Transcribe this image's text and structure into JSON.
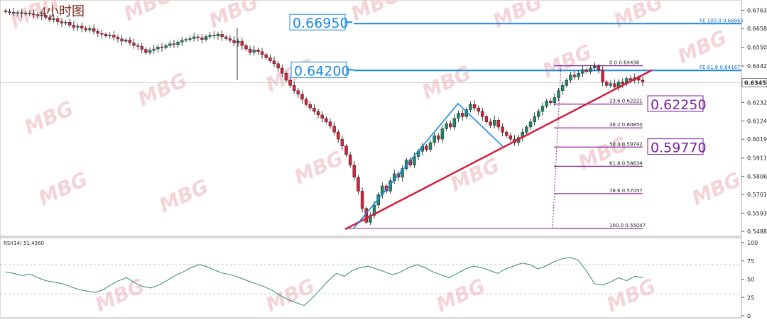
{
  "chart_data": {
    "type": "candlestick",
    "title": "4小时图",
    "watermark": "MBG",
    "price_axis": {
      "ylim": [
        0.548,
        0.679
      ],
      "ticks": [
        "0.67630",
        "0.66585",
        "0.65500",
        "0.64420",
        "0.63320",
        "0.62320",
        "0.61240",
        "0.60195",
        "0.59110",
        "0.58060",
        "0.57010",
        "0.55930",
        "0.54880"
      ]
    },
    "current_price": "0.63455",
    "annotations": {
      "big_labels": [
        {
          "text": "0.66950",
          "price": 0.6695,
          "color": "#1e88e5"
        },
        {
          "text": "0.64200",
          "price": 0.642,
          "color": "#1e88e5"
        },
        {
          "text": "0.62250",
          "price": 0.6225,
          "color": "#7b1fa2"
        },
        {
          "text": "0.59770",
          "price": 0.5977,
          "color": "#7b1fa2"
        }
      ],
      "fib_extension": [
        {
          "label": "FE 100.0",
          "value": "0.66865",
          "price": 0.66865
        },
        {
          "label": "FE 61.8",
          "value": "0.64167",
          "price": 0.64167
        }
      ],
      "fib_retracement": [
        {
          "label": "0.0",
          "value": "0.64436",
          "price": 0.64436
        },
        {
          "label": "23.6",
          "value": "0.62221",
          "price": 0.62221
        },
        {
          "label": "38.2",
          "value": "0.60850",
          "price": 0.6085
        },
        {
          "label": "50.0",
          "value": "0.59742",
          "price": 0.59742
        },
        {
          "label": "61.8",
          "value": "0.58634",
          "price": 0.58634
        },
        {
          "label": "78.6",
          "value": "0.57057",
          "price": 0.57057
        },
        {
          "label": "100.0",
          "value": "0.55047",
          "price": 0.55047
        }
      ]
    },
    "candles_close": [
      0.6755,
      0.6752,
      0.6748,
      0.675,
      0.6745,
      0.6747,
      0.6742,
      0.6738,
      0.6732,
      0.6735,
      0.6722,
      0.671,
      0.6715,
      0.6698,
      0.669,
      0.6695,
      0.6678,
      0.6665,
      0.6672,
      0.666,
      0.665,
      0.6658,
      0.6642,
      0.663,
      0.6625,
      0.6615,
      0.662,
      0.6608,
      0.6598,
      0.6585,
      0.6592,
      0.6575,
      0.656,
      0.6555,
      0.6538,
      0.652,
      0.6532,
      0.654,
      0.6552,
      0.6548,
      0.656,
      0.657,
      0.6565,
      0.658,
      0.659,
      0.6595,
      0.66,
      0.661,
      0.6605,
      0.6595,
      0.6612,
      0.662,
      0.6615,
      0.6625,
      0.661,
      0.66,
      0.659,
      0.6575,
      0.6585,
      0.656,
      0.654,
      0.652,
      0.6535,
      0.6525,
      0.6508,
      0.649,
      0.6472,
      0.6455,
      0.643,
      0.64,
      0.636,
      0.633,
      0.63,
      0.628,
      0.625,
      0.622,
      0.62,
      0.618,
      0.616,
      0.614,
      0.612,
      0.6095,
      0.606,
      0.602,
      0.598,
      0.593,
      0.587,
      0.58,
      0.572,
      0.562,
      0.554,
      0.558,
      0.564,
      0.57,
      0.575,
      0.572,
      0.578,
      0.582,
      0.58,
      0.585,
      0.59,
      0.587,
      0.592,
      0.595,
      0.598,
      0.596,
      0.6,
      0.604,
      0.602,
      0.608,
      0.611,
      0.609,
      0.614,
      0.617,
      0.615,
      0.619,
      0.622,
      0.62,
      0.618,
      0.615,
      0.612,
      0.61,
      0.613,
      0.609,
      0.606,
      0.604,
      0.602,
      0.6,
      0.603,
      0.606,
      0.609,
      0.612,
      0.615,
      0.618,
      0.621,
      0.624,
      0.623,
      0.626,
      0.63,
      0.633,
      0.636,
      0.639,
      0.638,
      0.64,
      0.642,
      0.641,
      0.643,
      0.644,
      0.642,
      0.635,
      0.633,
      0.634,
      0.632,
      0.635,
      0.634,
      0.637,
      0.636,
      0.6375,
      0.636,
      0.635
    ],
    "rsi": {
      "label": "RSI(14) 51.4360",
      "ylim": [
        0,
        100
      ],
      "ticks": [
        "100",
        "75",
        "50",
        "25",
        "0"
      ],
      "levels": [
        70,
        30
      ],
      "values": [
        60,
        58,
        55,
        57,
        52,
        48,
        46,
        44,
        40,
        36,
        34,
        32,
        35,
        42,
        48,
        52,
        45,
        40,
        38,
        42,
        48,
        55,
        60,
        66,
        70,
        67,
        62,
        58,
        56,
        52,
        48,
        44,
        40,
        35,
        28,
        22,
        18,
        14,
        24,
        36,
        48,
        58,
        54,
        62,
        66,
        68,
        64,
        60,
        56,
        60,
        66,
        70,
        66,
        60,
        56,
        52,
        58,
        64,
        68,
        66,
        62,
        58,
        64,
        68,
        72,
        70,
        64,
        68,
        74,
        78,
        80,
        76,
        62,
        44,
        42,
        46,
        52,
        48,
        54,
        52
      ]
    }
  }
}
